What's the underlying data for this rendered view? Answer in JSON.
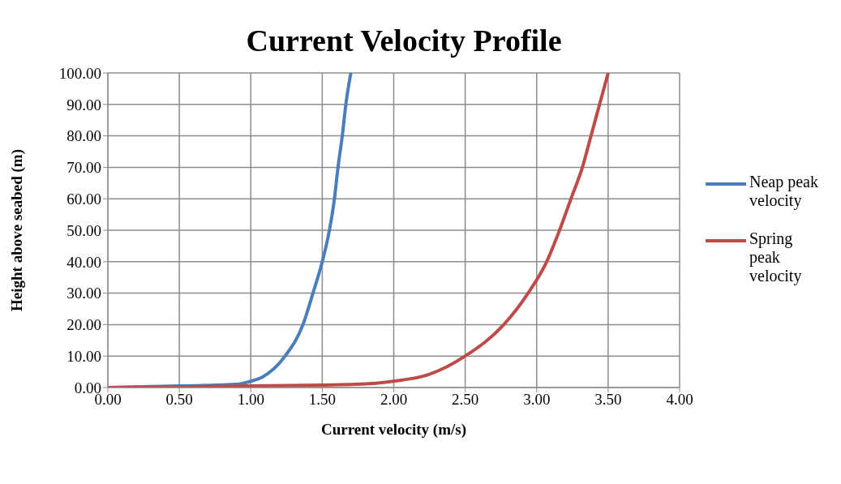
{
  "chart_data": {
    "type": "line",
    "title": "Current Velocity Profile",
    "xlabel": "Current velocity (m/s)",
    "ylabel": "Height above seabed (m)",
    "xlim": [
      0,
      4
    ],
    "xticks": [
      {
        "value": 0,
        "label": "0.00"
      },
      {
        "value": 0.5,
        "label": "0.50"
      },
      {
        "value": 1,
        "label": "1.00"
      },
      {
        "value": 1.5,
        "label": "1.50"
      },
      {
        "value": 2,
        "label": "2.00"
      },
      {
        "value": 2.5,
        "label": "2.50"
      },
      {
        "value": 3,
        "label": "3.00"
      },
      {
        "value": 3.5,
        "label": "3.50"
      },
      {
        "value": 4,
        "label": "4.00"
      }
    ],
    "ylim": [
      0,
      100
    ],
    "yticks": [
      {
        "value": 0,
        "label": "0.00"
      },
      {
        "value": 10,
        "label": "10.00"
      },
      {
        "value": 20,
        "label": "20.00"
      },
      {
        "value": 30,
        "label": "30.00"
      },
      {
        "value": 40,
        "label": "40.00"
      },
      {
        "value": 50,
        "label": "50.00"
      },
      {
        "value": 60,
        "label": "60.00"
      },
      {
        "value": 70,
        "label": "70.00"
      },
      {
        "value": 80,
        "label": "80.00"
      },
      {
        "value": 90,
        "label": "90.00"
      },
      {
        "value": 100,
        "label": "100.00"
      }
    ],
    "grid": true,
    "legend": "right",
    "marker": "none",
    "line_style": "solid",
    "series": [
      {
        "name": "Neap peak velocity",
        "color": "#4a7ebb",
        "x": [
          0,
          0.5,
          0.9,
          1.0,
          1.08,
          1.24,
          1.365,
          1.435,
          1.5,
          1.55,
          1.585,
          1.61,
          1.64,
          1.665,
          1.7
        ],
        "values": [
          0,
          0.5,
          1,
          2,
          3.3,
          10,
          20,
          30,
          40,
          50,
          60,
          70,
          80,
          90,
          100
        ]
      },
      {
        "name": "Spring peak velocity",
        "color": "#be4b48",
        "x": [
          0,
          1.0,
          1.5,
          1.73,
          2.0,
          2.25,
          2.5,
          2.77,
          2.94,
          3.07,
          3.16,
          3.24,
          3.32,
          3.38,
          3.44,
          3.5
        ],
        "values": [
          0,
          0.5,
          0.8,
          1,
          2,
          4.2,
          10,
          20,
          30,
          40,
          50,
          60,
          70,
          80,
          90,
          100
        ]
      }
    ]
  }
}
